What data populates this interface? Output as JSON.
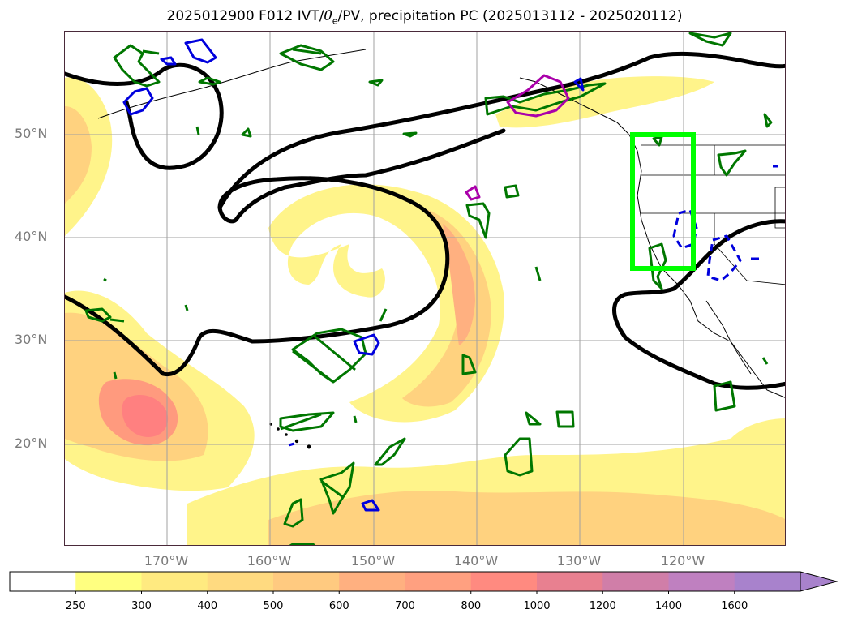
{
  "title": {
    "prefix": "2025012900 F012 IVT/",
    "theta": "θ",
    "theta_sub": "e",
    "suffix": "/PV, precipitation PC (2025013112 - 2025020112)"
  },
  "axes": {
    "lat_labels": [
      "50°N",
      "40°N",
      "30°N",
      "20°N"
    ],
    "lon_labels": [
      "170°W",
      "160°W",
      "150°W",
      "140°W",
      "130°W",
      "120°W"
    ]
  },
  "colorbar": {
    "levels": [
      "250",
      "300",
      "400",
      "500",
      "600",
      "700",
      "800",
      "1000",
      "1200",
      "1400",
      "1600"
    ],
    "colors": [
      "#ffffff",
      "#ffff80",
      "#ffea80",
      "#ffda80",
      "#ffca80",
      "#ffb080",
      "#ffa080",
      "#ff8a80",
      "#e88090",
      "#d07ea8",
      "#bf80c0",
      "#a882cc"
    ],
    "extend": "max"
  },
  "map": {
    "domain": "North Pacific / western North America",
    "region_box_color": "#00ff00",
    "contour_colors": {
      "pv": "#000000",
      "theta_e_positive": "#007700",
      "theta_e_negative": "#0000dd",
      "precip_pc": "#aa00aa"
    }
  }
}
